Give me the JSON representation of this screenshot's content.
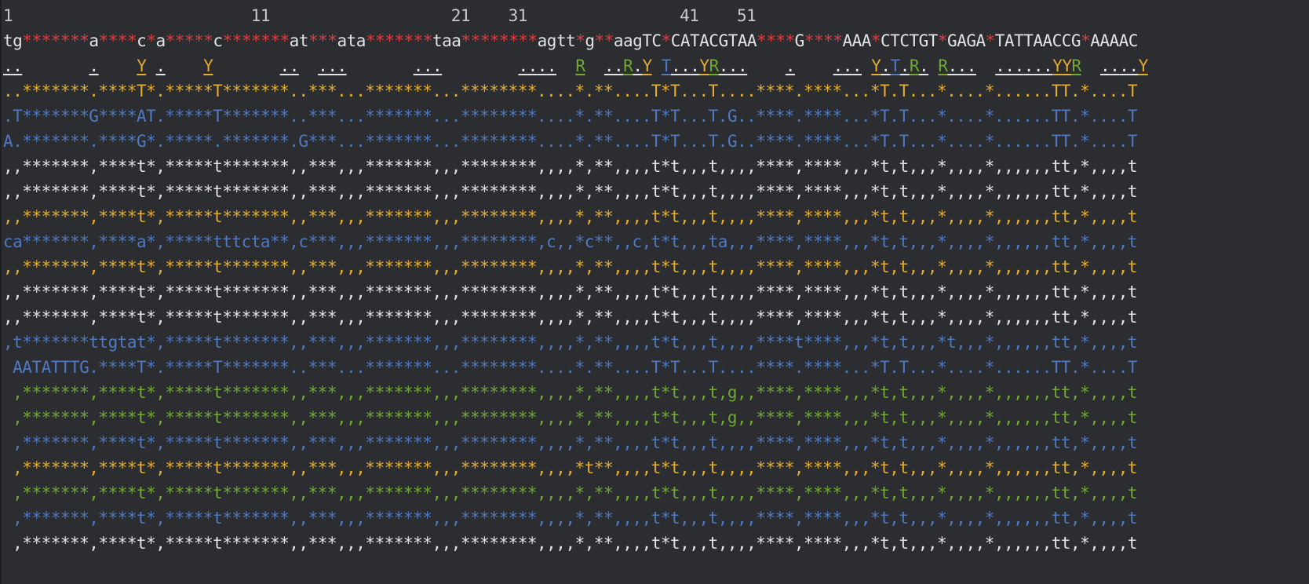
{
  "ruler": "1                         11                   21    31                41    51",
  "reference": {
    "color": "#e2e3e5",
    "text": "tg*******a****c*a*****c*******at***ata*******taa********agtt*g**aagTC*CATACGTAA****G****AAA*CTCTGT*GAGA*TATTAACCG*AAAAC"
  },
  "annotation": {
    "text": "..       .    Y .    Y       ..  ...       ...        ....  R  ..R.Y T...YR...    .    ... Y.T.R. R...  ......YYR  ....Y"
  },
  "alignment_rows": [
    {
      "color": "yellow",
      "text": "..*******.****T*.*****T*******..***...*******...********....*.**....T*T...T....****.****...*T.T...*....*......TT.*....T"
    },
    {
      "color": "blue",
      "text": ".T*******G****AT.*****T*******..***...*******...********....*.**....T*T...T.G..****.****...*T.T...*....*......TT.*....T"
    },
    {
      "color": "blue",
      "text": "A.*******.****G*.*****.*******.G***...*******...********....*.**....T*T...T.G..****.****...*T.T...*....*......TT.*....T"
    },
    {
      "color": "white",
      "text": ",,*******,****t*,*****t*******,,***,,,*******,,,********,,,,*,**,,,,t*t,,,t,,,,****,****,,,*t,t,,,*,,,,*,,,,,,tt,*,,,,t"
    },
    {
      "color": "white",
      "text": ",,*******,****t*,*****t*******,,***,,,*******,,,********,,,,*,**,,,,t*t,,,t,,,,****,****,,,*t,t,,,*,,,,*,,,,,,tt,*,,,,t"
    },
    {
      "color": "yellow",
      "text": ",,*******,****t*,*****t*******,,***,,,*******,,,********,,,,*,**,,,,t*t,,,t,,,,****,****,,,*t,t,,,*,,,,*,,,,,,tt,*,,,,t"
    },
    {
      "color": "blue",
      "text": "ca*******,****a*,*****tttcta**,c***,,,*******,,,********,c,,*c**,,c,t*t,,,ta,,,****,****,,,*t,t,,,*,,,,*,,,,,,tt,*,,,,t"
    },
    {
      "color": "yellow",
      "text": ",,*******,****t*,*****t*******,,***,,,*******,,,********,,,,*,**,,,,t*t,,,t,,,,****,****,,,*t,t,,,*,,,,*,,,,,,tt,*,,,,t"
    },
    {
      "color": "white",
      "text": ",,*******,****t*,*****t*******,,***,,,*******,,,********,,,,*,**,,,,t*t,,,t,,,,****,****,,,*t,t,,,*,,,,*,,,,,,tt,*,,,,t"
    },
    {
      "color": "white",
      "text": ",,*******,****t*,*****t*******,,***,,,*******,,,********,,,,*,**,,,,t*t,,,t,,,,****,****,,,*t,t,,,*,,,,*,,,,,,tt,*,,,,t"
    },
    {
      "color": "blue",
      "text": ",t*******ttgtat*,*****t*******,,***,,,*******,,,********,,,,*,**,,,,t*t,,,t,,,,****t****,,,*t,t,,,*t,,,*,,,,,,tt,*,,,,t"
    },
    {
      "color": "blue",
      "text": " AATATTTG.****T*.*****T*******..***...*******...********....*.**....T*T...T....****.****...*T.T...*....*......TT.*....T"
    },
    {
      "color": "green",
      "text": " ,*******,****t*,*****t*******,,***,,,*******,,,********,,,,*,**,,,,t*t,,,t,g,,****,****,,,*t,t,,,*,,,,*,,,,,,tt,*,,,,t"
    },
    {
      "color": "green",
      "text": " ,*******,****t*,*****t*******,,***,,,*******,,,********,,,,*,**,,,,t*t,,,t,g,,****,****,,,*t,t,,,*,,,,*,,,,,,tt,*,,,,t"
    },
    {
      "color": "blue",
      "text": " ,*******,****t*,*****t*******,,***,,,*******,,,********,,,,*,**,,,,t*t,,,t,,,,****,****,,,*t,t,,,*,,,,*,,,,,,tt,*,,,,t"
    },
    {
      "color": "yellow",
      "text": " ,*******,****t*,*****t*******,,***,,,*******,,,********,,,,*t**,,,,t*t,,,t,,,,****,****,,,*t,t,,,*,,,,*,,,,,,tt,*,,,,t"
    },
    {
      "color": "green",
      "text": " ,*******,****t*,*****t*******,,***,,,*******,,,********,,,,*,**,,,,t*t,,,t,,,,****,****,,,*t,t,,,*,,,,*,,,,,,tt,*,,,,t"
    },
    {
      "color": "blue",
      "text": " ,*******,****t*,*****t*******,,***,,,*******,,,********,,,,*,**,,,,t*t,,,t,,,,****,****,,,*t,t,,,*,,,,*,,,,,,tt,*,,,,t"
    },
    {
      "color": "white",
      "text": " ,*******,****t*,*****t*******,,***,,,*******,,,********,,,,*,**,,,,t*t,,,t,,,,****,****,,,*t,t,,,*,,,,*,,,,,,tt,*,,,,t"
    }
  ],
  "colors": {
    "background": "#2b2d30",
    "text": "#e2e3e5",
    "yellow": "#e5ac2f",
    "blue": "#4f79c1",
    "green": "#71a834",
    "red_gap": "#e23c3c"
  }
}
